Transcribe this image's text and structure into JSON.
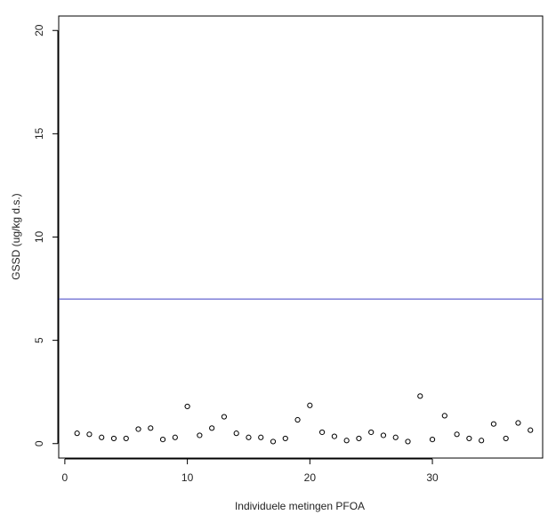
{
  "chart_data": {
    "type": "scatter",
    "xlabel": "Individuele metingen PFOA",
    "ylabel": "GSSD (ug/kg d.s.)",
    "xlim": [
      -0.5,
      39
    ],
    "ylim": [
      -0.7,
      20.7
    ],
    "x_ticks": [
      0,
      10,
      20,
      30
    ],
    "y_ticks": [
      0,
      5,
      10,
      15,
      20
    ],
    "grid": false,
    "reference_line": {
      "y": 7.0,
      "color": "#5555cc"
    },
    "point_color": "#000000",
    "x": [
      1,
      2,
      3,
      4,
      5,
      6,
      7,
      8,
      9,
      10,
      11,
      12,
      13,
      14,
      15,
      16,
      17,
      18,
      19,
      20,
      21,
      22,
      23,
      24,
      25,
      26,
      27,
      28,
      29,
      30,
      31,
      32,
      33,
      34,
      35,
      36,
      37,
      38
    ],
    "y": [
      0.5,
      0.45,
      0.3,
      0.25,
      0.25,
      0.7,
      0.75,
      0.2,
      0.3,
      1.8,
      0.4,
      0.75,
      1.3,
      0.5,
      0.3,
      0.3,
      0.1,
      0.25,
      1.15,
      1.85,
      0.55,
      0.35,
      0.15,
      0.25,
      0.55,
      0.4,
      0.3,
      0.1,
      2.3,
      0.2,
      1.35,
      0.45,
      0.25,
      0.15,
      0.95,
      0.25,
      1.0,
      0.65
    ]
  }
}
